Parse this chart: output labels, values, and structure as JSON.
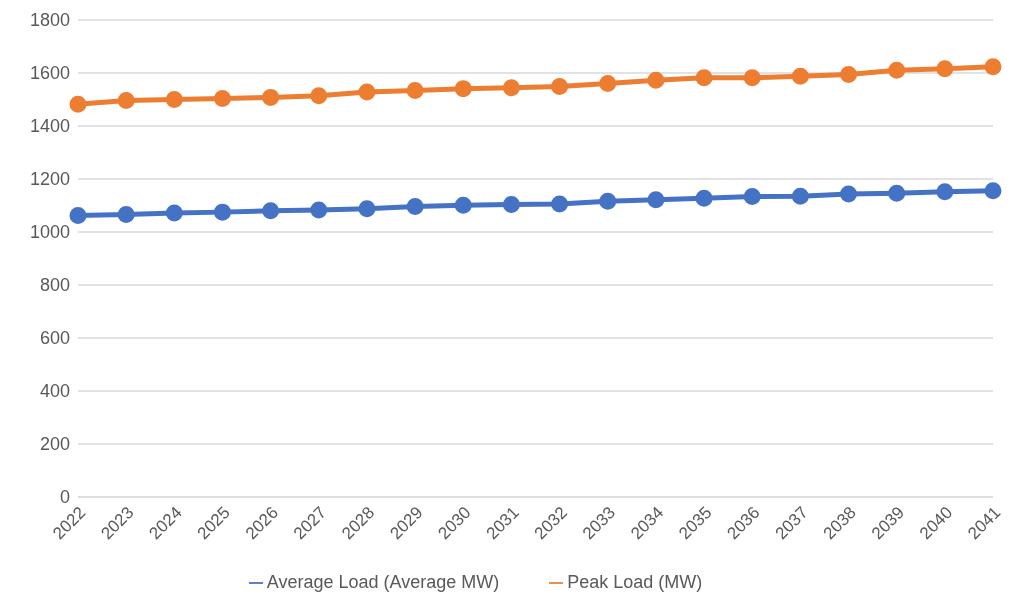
{
  "chart_data": {
    "type": "line",
    "categories": [
      "2022",
      "2023",
      "2024",
      "2025",
      "2026",
      "2027",
      "2028",
      "2029",
      "2030",
      "2031",
      "2032",
      "2033",
      "2034",
      "2035",
      "2036",
      "2037",
      "2038",
      "2039",
      "2040",
      "2041"
    ],
    "series": [
      {
        "name": "Average Load (Average MW)",
        "color": "#4472c4",
        "values": [
          1062,
          1066,
          1072,
          1075,
          1080,
          1083,
          1088,
          1096,
          1101,
          1104,
          1106,
          1116,
          1122,
          1127,
          1134,
          1135,
          1143,
          1146,
          1152,
          1156
        ]
      },
      {
        "name": "Peak Load (MW)",
        "color": "#ed7d31",
        "values": [
          1482,
          1496,
          1500,
          1504,
          1508,
          1514,
          1528,
          1534,
          1541,
          1544,
          1549,
          1560,
          1573,
          1582,
          1582,
          1588,
          1594,
          1610,
          1616,
          1624
        ]
      }
    ],
    "ylim": [
      0,
      1800
    ],
    "yticks": [
      0,
      200,
      400,
      600,
      800,
      1000,
      1200,
      1400,
      1600,
      1800
    ],
    "grid": "y",
    "legend": "bottom",
    "marker": "circle",
    "line_style": "solid"
  }
}
